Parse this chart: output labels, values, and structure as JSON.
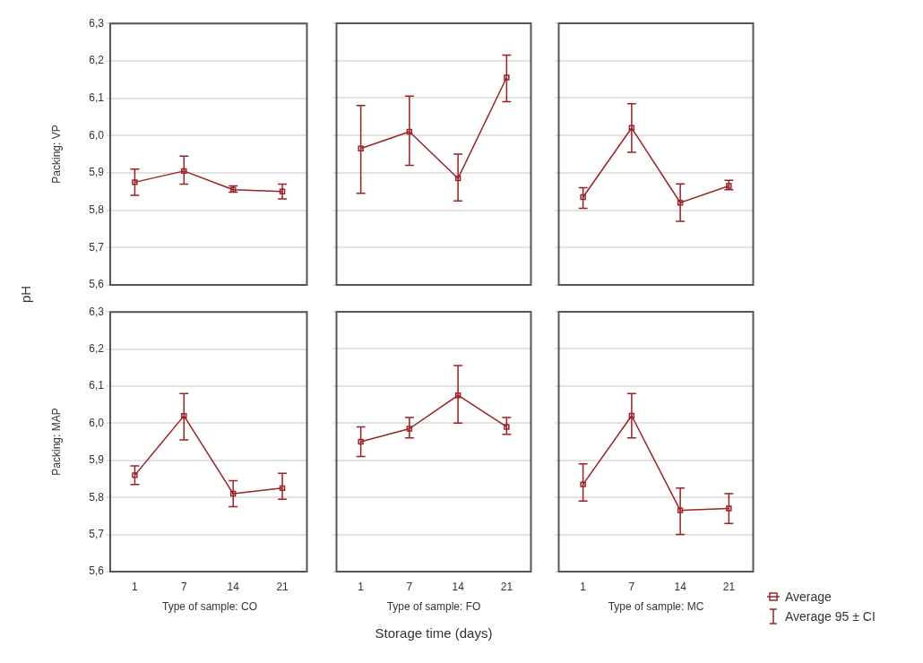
{
  "chart_data": [
    {
      "type": "line",
      "categories": [
        "1",
        "7",
        "14",
        "21"
      ],
      "ylabel": "Packing: VP",
      "annotations": [
        "pH"
      ],
      "ylim": [
        5.6,
        6.3
      ],
      "yticks": [
        {
          "value": 5.6,
          "label": "5,6"
        },
        {
          "value": 5.7,
          "label": "5,7"
        },
        {
          "value": 5.8,
          "label": "5,8"
        },
        {
          "value": 5.9,
          "label": "5,9"
        },
        {
          "value": 6.0,
          "label": "6,0"
        },
        {
          "value": 6.1,
          "label": "6,1"
        },
        {
          "value": 6.2,
          "label": "6,2"
        },
        {
          "value": 6.3,
          "label": "6,3"
        }
      ],
      "tick_labels": "y",
      "grid": "y",
      "marker": "square",
      "line_style": "solid",
      "series": [
        {
          "color": "#9b2226",
          "values": [
            5.875,
            5.905,
            5.855,
            5.85
          ],
          "errors": [
            [
              5.84,
              5.91
            ],
            [
              5.87,
              5.945
            ],
            [
              5.848,
              5.865
            ],
            [
              5.83,
              5.87
            ]
          ]
        }
      ]
    },
    {
      "type": "line",
      "categories": [
        "1",
        "7",
        "14",
        "21"
      ],
      "ylim": [
        5.6,
        6.3
      ],
      "yticks": [
        {
          "value": 5.6,
          "label": null
        },
        {
          "value": 5.7,
          "label": null
        },
        {
          "value": 5.8,
          "label": null
        },
        {
          "value": 5.9,
          "label": null
        },
        {
          "value": 6.0,
          "label": null
        },
        {
          "value": 6.1,
          "label": null
        },
        {
          "value": 6.2,
          "label": null
        },
        {
          "value": 6.3,
          "label": null
        }
      ],
      "tick_labels": false,
      "grid": "y",
      "marker": "square",
      "line_style": "solid",
      "series": [
        {
          "color": "#9b2226",
          "values": [
            5.965,
            6.01,
            5.885,
            6.155
          ],
          "errors": [
            [
              5.845,
              6.08
            ],
            [
              5.92,
              6.105
            ],
            [
              5.825,
              5.95
            ],
            [
              6.09,
              6.215
            ]
          ]
        }
      ]
    },
    {
      "type": "line",
      "categories": [
        "1",
        "7",
        "14",
        "21"
      ],
      "ylim": [
        5.6,
        6.3
      ],
      "yticks": [
        {
          "value": 5.6,
          "label": null
        },
        {
          "value": 5.7,
          "label": null
        },
        {
          "value": 5.8,
          "label": null
        },
        {
          "value": 5.9,
          "label": null
        },
        {
          "value": 6.0,
          "label": null
        },
        {
          "value": 6.1,
          "label": null
        },
        {
          "value": 6.2,
          "label": null
        },
        {
          "value": 6.3,
          "label": null
        }
      ],
      "tick_labels": false,
      "grid": "y",
      "marker": "square",
      "line_style": "solid",
      "series": [
        {
          "color": "#9b2226",
          "values": [
            5.835,
            6.02,
            5.82,
            5.865
          ],
          "errors": [
            [
              5.805,
              5.86
            ],
            [
              5.955,
              6.085
            ],
            [
              5.77,
              5.87
            ],
            [
              5.855,
              5.88
            ]
          ]
        }
      ]
    },
    {
      "type": "line",
      "categories": [
        "1",
        "7",
        "14",
        "21"
      ],
      "xlabel": "Type of sample: CO",
      "ylabel": "Packing: MAP",
      "ylim": [
        5.6,
        6.3
      ],
      "yticks": [
        {
          "value": 5.6,
          "label": "5,6"
        },
        {
          "value": 5.7,
          "label": "5,7"
        },
        {
          "value": 5.8,
          "label": "5,8"
        },
        {
          "value": 5.9,
          "label": "5,9"
        },
        {
          "value": 6.0,
          "label": "6,0"
        },
        {
          "value": 6.1,
          "label": "6,1"
        },
        {
          "value": 6.2,
          "label": "6,2"
        },
        {
          "value": 6.3,
          "label": "6,3"
        }
      ],
      "grid": "y",
      "marker": "square",
      "line_style": "solid",
      "series": [
        {
          "color": "#9b2226",
          "values": [
            5.86,
            6.02,
            5.81,
            5.825
          ],
          "errors": [
            [
              5.835,
              5.885
            ],
            [
              5.955,
              6.08
            ],
            [
              5.775,
              5.845
            ],
            [
              5.795,
              5.865
            ]
          ]
        }
      ]
    },
    {
      "type": "line",
      "categories": [
        "1",
        "7",
        "14",
        "21"
      ],
      "xlabel": "Type of sample: FO",
      "annotations": [
        "Storage time (days)"
      ],
      "ylim": [
        5.6,
        6.3
      ],
      "yticks": [
        {
          "value": 5.6,
          "label": null
        },
        {
          "value": 5.7,
          "label": null
        },
        {
          "value": 5.8,
          "label": null
        },
        {
          "value": 5.9,
          "label": null
        },
        {
          "value": 6.0,
          "label": null
        },
        {
          "value": 6.1,
          "label": null
        },
        {
          "value": 6.2,
          "label": null
        },
        {
          "value": 6.3,
          "label": null
        }
      ],
      "tick_labels": "x",
      "grid": "y",
      "marker": "square",
      "line_style": "solid",
      "series": [
        {
          "color": "#9b2226",
          "values": [
            5.95,
            5.985,
            6.075,
            5.99
          ],
          "errors": [
            [
              5.91,
              5.99
            ],
            [
              5.96,
              6.015
            ],
            [
              6.0,
              6.155
            ],
            [
              5.97,
              6.015
            ]
          ]
        }
      ]
    },
    {
      "type": "line",
      "categories": [
        "1",
        "7",
        "14",
        "21"
      ],
      "xlabel": "Type of sample: MC",
      "annotations": [
        "Average 95 ± CI"
      ],
      "legend": "right",
      "ylim": [
        5.6,
        6.3
      ],
      "yticks": [
        {
          "value": 5.6,
          "label": null
        },
        {
          "value": 5.7,
          "label": null
        },
        {
          "value": 5.8,
          "label": null
        },
        {
          "value": 5.9,
          "label": null
        },
        {
          "value": 6.0,
          "label": null
        },
        {
          "value": 6.1,
          "label": null
        },
        {
          "value": 6.2,
          "label": null
        },
        {
          "value": 6.3,
          "label": null
        }
      ],
      "tick_labels": "x",
      "grid": "y",
      "marker": "square",
      "line_style": "solid",
      "series": [
        {
          "name": "Average",
          "color": "#9b2226",
          "values": [
            5.835,
            6.02,
            5.765,
            5.77
          ],
          "errors": [
            [
              5.79,
              5.89
            ],
            [
              5.96,
              6.08
            ],
            [
              5.7,
              5.825
            ],
            [
              5.73,
              5.81
            ]
          ]
        }
      ]
    }
  ]
}
